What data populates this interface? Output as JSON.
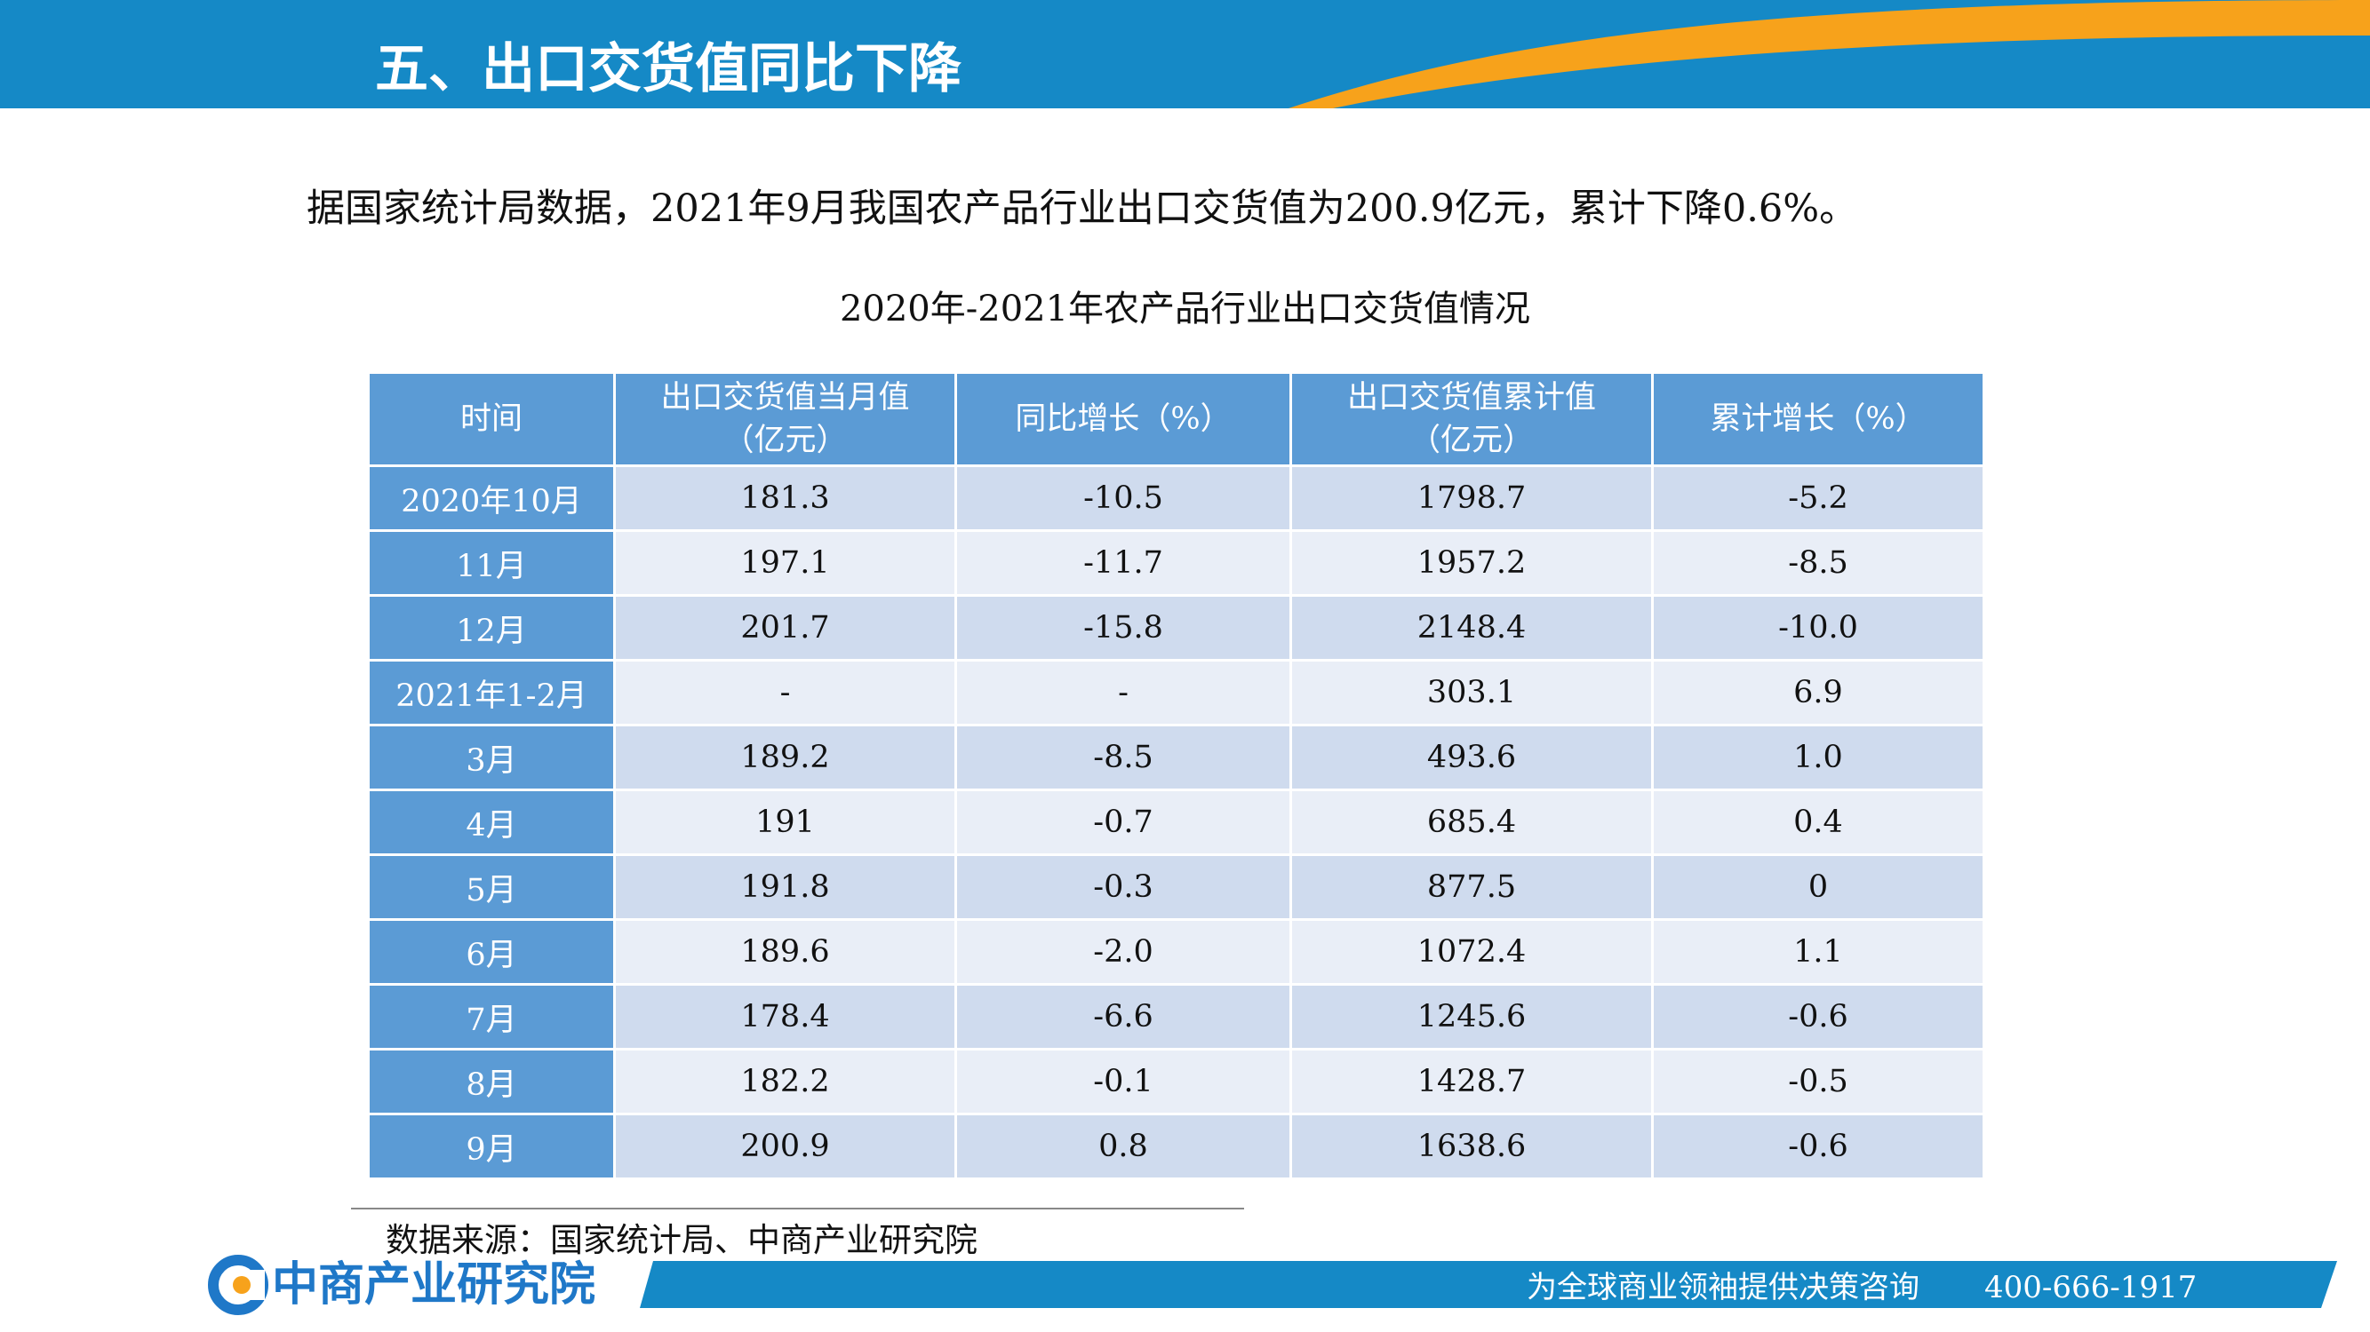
{
  "header": {
    "title": "五、出口交货值同比下降"
  },
  "intro": "据国家统计局数据，2021年9月我国农产品行业出口交货值为200.9亿元，累计下降0.6%。",
  "table": {
    "title": "2020年-2021年农产品行业出口交货值情况",
    "headers": [
      [
        "时间"
      ],
      [
        "出口交货值当月值",
        "（亿元）"
      ],
      [
        "同比增长（%）"
      ],
      [
        "出口交货值累计值",
        "（亿元）"
      ],
      [
        "累计增长（%）"
      ]
    ],
    "rows": [
      [
        "2020年10月",
        "181.3",
        "-10.5",
        "1798.7",
        "-5.2"
      ],
      [
        "11月",
        "197.1",
        "-11.7",
        "1957.2",
        "-8.5"
      ],
      [
        "12月",
        "201.7",
        "-15.8",
        "2148.4",
        "-10.0"
      ],
      [
        "2021年1-2月",
        "-",
        "-",
        "303.1",
        "6.9"
      ],
      [
        "3月",
        "189.2",
        "-8.5",
        "493.6",
        "1.0"
      ],
      [
        "4月",
        "191",
        "-0.7",
        "685.4",
        "0.4"
      ],
      [
        "5月",
        "191.8",
        "-0.3",
        "877.5",
        "0"
      ],
      [
        "6月",
        "189.6",
        "-2.0",
        "1072.4",
        "1.1"
      ],
      [
        "7月",
        "178.4",
        "-6.6",
        "1245.6",
        "-0.6"
      ],
      [
        "8月",
        "182.2",
        "-0.1",
        "1428.7",
        "-0.5"
      ],
      [
        "9月",
        "200.9",
        "0.8",
        "1638.6",
        "-0.6"
      ]
    ]
  },
  "source": "数据来源：国家统计局、中商产业研究院",
  "footer": {
    "logo": "中商产业研究院",
    "slogan": "为全球商业领袖提供决策咨询",
    "phone": "400-666-1917"
  }
}
